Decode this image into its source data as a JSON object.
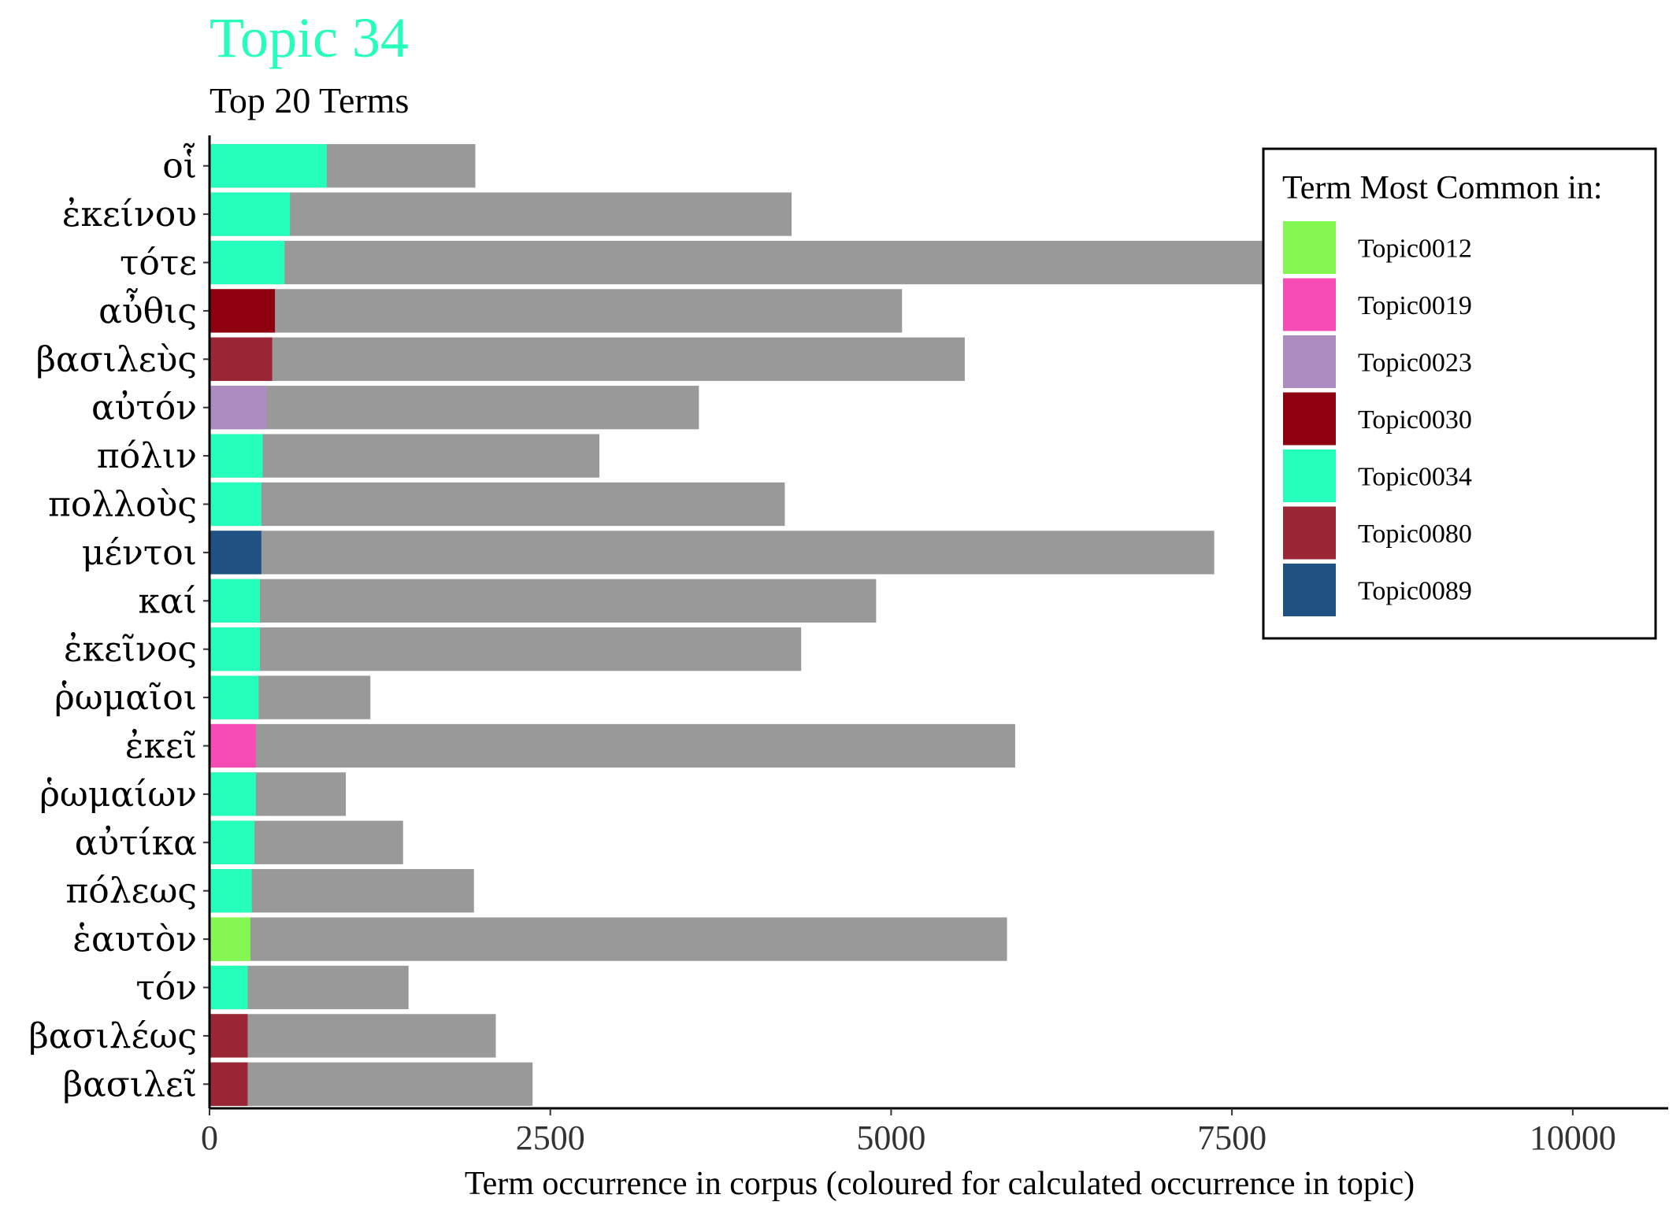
{
  "chart_data": {
    "type": "bar",
    "orientation": "horizontal",
    "stacked": true,
    "title": "Topic 34",
    "subtitle": "Top 20 Terms",
    "xlabel": "Term occurrence in corpus (coloured for calculated occurrence in topic)",
    "ylabel": "",
    "xlim": [
      0,
      10700
    ],
    "xticks": [
      0,
      2500,
      5000,
      7500,
      10000
    ],
    "grid": false,
    "legend_position": "top-right",
    "legend_title": "Term Most Common in:",
    "title_color": "#26FFBB",
    "corpus_color": "#999999",
    "legend": [
      {
        "name": "Topic0012",
        "color": "#84F752"
      },
      {
        "name": "Topic0019",
        "color": "#F74CB5"
      },
      {
        "name": "Topic0023",
        "color": "#AD8CC2"
      },
      {
        "name": "Topic0030",
        "color": "#8E0010"
      },
      {
        "name": "Topic0034",
        "color": "#26FFBB"
      },
      {
        "name": "Topic0080",
        "color": "#9B2636"
      },
      {
        "name": "Topic0089",
        "color": "#1F5283"
      }
    ],
    "bars": [
      {
        "term": "οἷ",
        "topic_count": 860,
        "corpus_total": 1950,
        "topic": "Topic0034"
      },
      {
        "term": "ἐκείνου",
        "topic_count": 590,
        "corpus_total": 4270,
        "topic": "Topic0034"
      },
      {
        "term": "τότε",
        "topic_count": 550,
        "corpus_total": 7800,
        "topic": "Topic0034"
      },
      {
        "term": "αὖθις",
        "topic_count": 480,
        "corpus_total": 5080,
        "topic": "Topic0030"
      },
      {
        "term": "βασιλεὺς",
        "topic_count": 460,
        "corpus_total": 5540,
        "topic": "Topic0080"
      },
      {
        "term": "αὐτόν",
        "topic_count": 420,
        "corpus_total": 3590,
        "topic": "Topic0023"
      },
      {
        "term": "πόλιν",
        "topic_count": 390,
        "corpus_total": 2860,
        "topic": "Topic0034"
      },
      {
        "term": "πολλοὺς",
        "topic_count": 380,
        "corpus_total": 4220,
        "topic": "Topic0034"
      },
      {
        "term": "μέντοι",
        "topic_count": 380,
        "corpus_total": 7370,
        "topic": "Topic0089"
      },
      {
        "term": "καί",
        "topic_count": 370,
        "corpus_total": 4890,
        "topic": "Topic0034"
      },
      {
        "term": "ἐκεῖνος",
        "topic_count": 370,
        "corpus_total": 4340,
        "topic": "Topic0034"
      },
      {
        "term": "ῥωμαῖοι",
        "topic_count": 360,
        "corpus_total": 1180,
        "topic": "Topic0034"
      },
      {
        "term": "ἐκεῖ",
        "topic_count": 340,
        "corpus_total": 5910,
        "topic": "Topic0019"
      },
      {
        "term": "ῥωμαίων",
        "topic_count": 340,
        "corpus_total": 1000,
        "topic": "Topic0034"
      },
      {
        "term": "αὐτίκα",
        "topic_count": 330,
        "corpus_total": 1420,
        "topic": "Topic0034"
      },
      {
        "term": "πόλεως",
        "topic_count": 310,
        "corpus_total": 1940,
        "topic": "Topic0034"
      },
      {
        "term": "ἑαυτὸν",
        "topic_count": 300,
        "corpus_total": 5850,
        "topic": "Topic0012"
      },
      {
        "term": "τόν",
        "topic_count": 280,
        "corpus_total": 1460,
        "topic": "Topic0034"
      },
      {
        "term": "βασιλέως",
        "topic_count": 280,
        "corpus_total": 2100,
        "topic": "Topic0080"
      },
      {
        "term": "βασιλεῖ",
        "topic_count": 280,
        "corpus_total": 2370,
        "topic": "Topic0080"
      }
    ]
  }
}
